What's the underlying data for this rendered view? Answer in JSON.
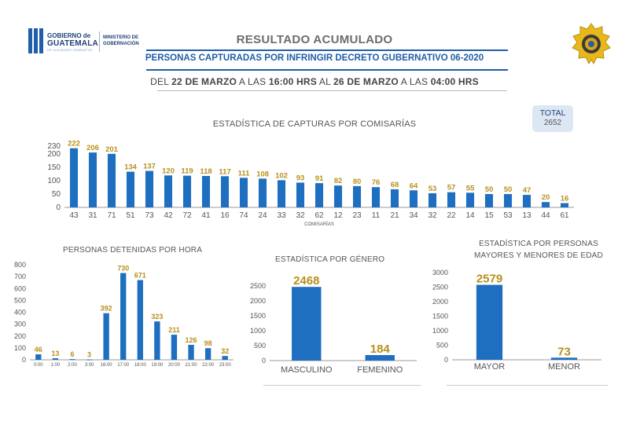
{
  "header": {
    "logo_left": {
      "line1": "GOBIERNO de",
      "line2": "GUATEMALA",
      "line3": "DR. ALEJANDRO GIAMMATTEI",
      "ministry": "MINISTERIO DE GOBERNACIÓN"
    },
    "title": "RESULTADO ACUMULADO",
    "subtitle": "PERSONAS CAPTURADAS POR INFRINGIR DECRETO GUBERNATIVO 06-2020",
    "date": {
      "p1": "DEL ",
      "d1": "22 DE MARZO",
      "p2": " A LAS ",
      "h1": "16:00 HRS",
      "p3": " AL ",
      "d2": "26 DE MARZO",
      "p4": " A LAS ",
      "h2": "04:00 HRS"
    },
    "badge_icon": "police-badge-icon"
  },
  "total": {
    "label": "TOTAL",
    "value": "2652"
  },
  "colors": {
    "bar": "#1f6fc0",
    "value_label": "#b8901c",
    "axis_text": "#555555",
    "accent": "#1f5ea8"
  },
  "chart_data": [
    {
      "type": "bar",
      "title": "ESTADÍSTICA DE CAPTURAS POR COMISARÍAS",
      "xlabel": "COMISARÍAS",
      "ylabel": "",
      "ylim": [
        0,
        230
      ],
      "yticks": [
        0,
        50,
        100,
        150,
        200,
        230
      ],
      "categories": [
        "43",
        "31",
        "71",
        "51",
        "73",
        "42",
        "72",
        "41",
        "16",
        "74",
        "24",
        "33",
        "32",
        "62",
        "12",
        "23",
        "11",
        "21",
        "34",
        "32",
        "22",
        "14",
        "15",
        "53",
        "13",
        "44",
        "61"
      ],
      "values": [
        222,
        206,
        201,
        134,
        137,
        120,
        119,
        118,
        117,
        111,
        108,
        102,
        93,
        91,
        82,
        80,
        76,
        68,
        64,
        53,
        57,
        55,
        50,
        50,
        47,
        20,
        16
      ]
    },
    {
      "type": "bar",
      "title": "PERSONAS DETENIDAS POR HORA",
      "xlabel": "",
      "ylabel": "",
      "ylim": [
        0,
        800
      ],
      "yticks": [
        0,
        100,
        200,
        300,
        400,
        500,
        600,
        700,
        800
      ],
      "categories": [
        "0:00",
        "1:00",
        "2:00",
        "3:00",
        "16:00",
        "17:00",
        "18:00",
        "19:00",
        "20:00",
        "21:00",
        "22:00",
        "23:00"
      ],
      "values": [
        46,
        13,
        6,
        3,
        392,
        730,
        671,
        323,
        211,
        126,
        98,
        32
      ]
    },
    {
      "type": "bar",
      "title": "ESTADÍSTICA POR GÉNERO",
      "xlabel": "",
      "ylabel": "",
      "ylim": [
        0,
        2500
      ],
      "yticks": [
        0,
        500,
        1000,
        1500,
        2000,
        2500
      ],
      "categories": [
        "MASCULINO",
        "FEMENINO"
      ],
      "values": [
        2468,
        184
      ]
    },
    {
      "type": "bar",
      "title": "ESTADÍSTICA POR PERSONAS MAYORES Y MENORES DE EDAD",
      "title_lines": [
        "ESTADÍSTICA POR PERSONAS",
        "MAYORES Y MENORES DE EDAD"
      ],
      "xlabel": "",
      "ylabel": "",
      "ylim": [
        0,
        3000
      ],
      "yticks": [
        0,
        500,
        1000,
        1500,
        2000,
        2500,
        3000
      ],
      "categories": [
        "MAYOR",
        "MENOR"
      ],
      "values": [
        2579,
        73
      ]
    }
  ]
}
